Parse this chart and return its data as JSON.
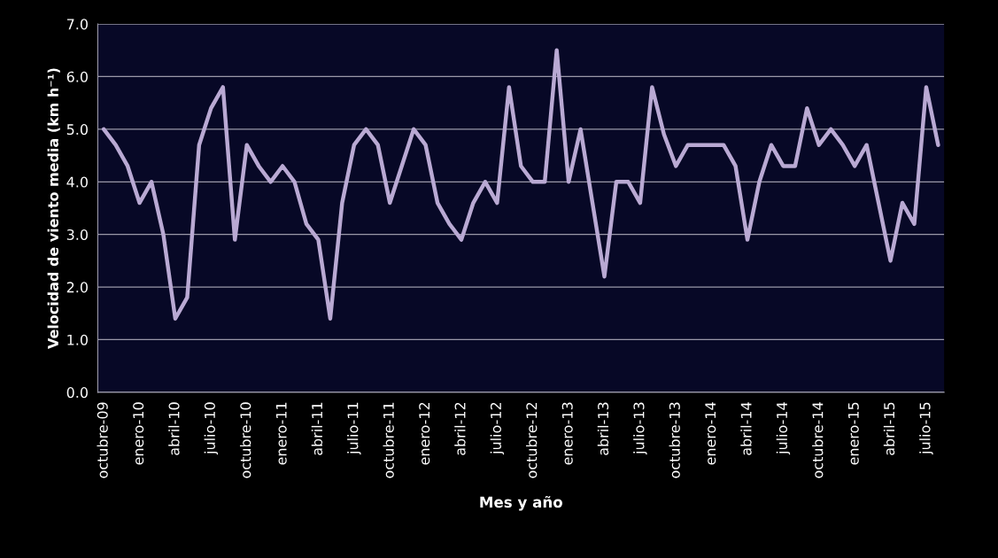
{
  "chart_data": {
    "type": "line",
    "xlabel": "Mes y año",
    "ylabel": "Velocidad de viento media (km h⁻¹)",
    "categories": [
      "octubre-09",
      null,
      null,
      "enero-10",
      null,
      null,
      "abril-10",
      null,
      null,
      "julio-10",
      null,
      null,
      "octubre-10",
      null,
      null,
      "enero-11",
      null,
      null,
      "abril-11",
      null,
      null,
      "julio-11",
      null,
      null,
      "octubre-11",
      null,
      null,
      "enero-12",
      null,
      null,
      "abril-12",
      null,
      null,
      "julio-12",
      null,
      null,
      "octubre-12",
      null,
      null,
      "enero-13",
      null,
      null,
      "abril-13",
      null,
      null,
      "julio-13",
      null,
      null,
      "octubre-13",
      null,
      null,
      "enero-14",
      null,
      null,
      "abril-14",
      null,
      null,
      "julio-14",
      null,
      null,
      "octubre-14",
      null,
      null,
      "enero-15",
      null,
      null,
      "abril-15",
      null,
      null,
      "julio-15",
      null
    ],
    "series": [
      {
        "color": "#b9a9d3",
        "values": [
          5.0,
          4.7,
          4.3,
          3.6,
          4.0,
          3.0,
          1.4,
          1.8,
          4.7,
          5.4,
          5.8,
          2.9,
          4.7,
          4.3,
          4.0,
          4.3,
          4.0,
          3.2,
          2.9,
          1.4,
          3.6,
          4.7,
          5.0,
          4.7,
          3.6,
          4.3,
          5.0,
          4.7,
          3.6,
          3.2,
          2.9,
          3.6,
          4.0,
          3.6,
          5.8,
          4.3,
          4.0,
          4.0,
          6.5,
          4.0,
          5.0,
          3.6,
          2.2,
          4.0,
          4.0,
          3.6,
          5.8,
          4.9,
          4.3,
          4.7,
          4.7,
          4.7,
          4.7,
          4.3,
          2.9,
          4.0,
          4.7,
          4.3,
          4.3,
          5.4,
          4.7,
          5.0,
          4.7,
          4.3,
          4.7,
          3.6,
          2.5,
          3.6,
          3.2,
          5.8,
          4.7
        ]
      }
    ],
    "ylim": [
      0,
      7
    ],
    "yticks": [
      {
        "value": 0,
        "label": "0.0"
      },
      {
        "value": 1,
        "label": "1.0"
      },
      {
        "value": 2,
        "label": "2.0"
      },
      {
        "value": 3,
        "label": "3.0"
      },
      {
        "value": 4,
        "label": "4.0"
      },
      {
        "value": 5,
        "label": "5.0"
      },
      {
        "value": 6,
        "label": "6.0"
      },
      {
        "value": 7,
        "label": "7.0"
      }
    ],
    "grid": "y",
    "marker": "none",
    "line_style": "solid"
  }
}
